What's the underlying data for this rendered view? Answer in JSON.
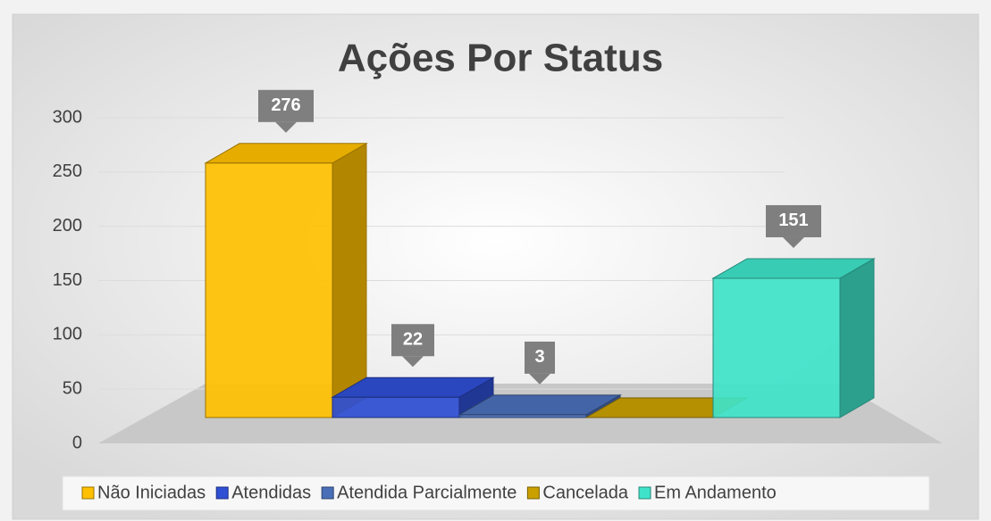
{
  "chart_data": {
    "type": "bar3d",
    "title": "Ações Por Status",
    "categories": [
      "Não Iniciadas",
      "Atendidas",
      "Atendida Parcialmente",
      "Cancelada",
      "Em Andamento"
    ],
    "values": [
      276,
      22,
      3,
      0,
      151
    ],
    "value_labels": [
      "276",
      "22",
      "3",
      null,
      "151"
    ],
    "colors": [
      "#ffc000",
      "#2f4fd4",
      "#4a6fb8",
      "#c9a000",
      "#3fe3c9"
    ],
    "ylim": [
      0,
      300
    ],
    "yticks": [
      0,
      50,
      100,
      150,
      200,
      250,
      300
    ],
    "grid": true,
    "legend": "bottom"
  }
}
